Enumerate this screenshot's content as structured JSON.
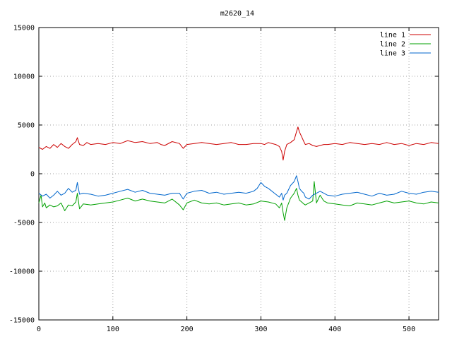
{
  "chart_data": {
    "type": "line",
    "title": "m2620_14",
    "xlabel": "",
    "ylabel": "",
    "xlim": [
      0,
      540
    ],
    "ylim": [
      -15000,
      15000
    ],
    "xticks": [
      0,
      100,
      200,
      300,
      400,
      500
    ],
    "yticks": [
      -15000,
      -10000,
      -5000,
      0,
      5000,
      10000,
      15000
    ],
    "xtick_labels": [
      "0",
      "100",
      "200",
      "300",
      "400",
      "500"
    ],
    "ytick_labels": [
      "-15000",
      "-10000",
      "-5000",
      "0",
      "5000",
      "10000",
      "15000"
    ],
    "grid": true,
    "legend_position": "top-right",
    "series": [
      {
        "name": "line 1",
        "color": "#cc0000",
        "x": [
          0,
          5,
          10,
          15,
          20,
          25,
          30,
          35,
          40,
          45,
          50,
          52,
          55,
          60,
          65,
          70,
          80,
          90,
          100,
          110,
          120,
          130,
          140,
          150,
          160,
          165,
          170,
          180,
          190,
          195,
          200,
          210,
          220,
          230,
          240,
          250,
          260,
          270,
          280,
          290,
          300,
          305,
          310,
          320,
          325,
          328,
          330,
          332,
          335,
          340,
          345,
          348,
          350,
          352,
          355,
          358,
          360,
          365,
          370,
          375,
          380,
          385,
          390,
          400,
          410,
          420,
          430,
          440,
          450,
          460,
          470,
          480,
          490,
          500,
          510,
          520,
          530,
          540
        ],
        "y": [
          2700,
          2500,
          2800,
          2600,
          3000,
          2700,
          3100,
          2800,
          2600,
          3000,
          3300,
          3700,
          3000,
          2900,
          3200,
          3000,
          3100,
          3000,
          3200,
          3100,
          3400,
          3200,
          3300,
          3100,
          3200,
          3000,
          2900,
          3300,
          3100,
          2600,
          3000,
          3100,
          3200,
          3100,
          3000,
          3100,
          3200,
          3000,
          3000,
          3100,
          3100,
          3000,
          3200,
          3000,
          2800,
          2300,
          1400,
          2300,
          3000,
          3200,
          3500,
          4300,
          4800,
          4300,
          3800,
          3300,
          3000,
          3100,
          2900,
          2800,
          2900,
          3000,
          3000,
          3100,
          3000,
          3200,
          3100,
          3000,
          3100,
          3000,
          3200,
          3000,
          3100,
          2900,
          3100,
          3000,
          3200,
          3100
        ]
      },
      {
        "name": "line 2",
        "color": "#00a000",
        "x": [
          0,
          3,
          5,
          8,
          10,
          15,
          20,
          25,
          30,
          35,
          40,
          45,
          50,
          52,
          55,
          60,
          70,
          80,
          90,
          100,
          110,
          120,
          130,
          140,
          150,
          160,
          170,
          180,
          190,
          195,
          200,
          210,
          220,
          230,
          240,
          250,
          260,
          270,
          280,
          290,
          300,
          310,
          320,
          325,
          328,
          330,
          332,
          335,
          340,
          345,
          348,
          350,
          352,
          355,
          358,
          360,
          365,
          370,
          372,
          375,
          378,
          380,
          385,
          390,
          400,
          410,
          420,
          430,
          440,
          450,
          460,
          470,
          480,
          490,
          500,
          510,
          520,
          530,
          540
        ],
        "y": [
          -3000,
          -2200,
          -3400,
          -3000,
          -3500,
          -3200,
          -3400,
          -3300,
          -3000,
          -3800,
          -3200,
          -3300,
          -2900,
          -2000,
          -3600,
          -3100,
          -3200,
          -3100,
          -3000,
          -2900,
          -2700,
          -2500,
          -2800,
          -2600,
          -2800,
          -2900,
          -3000,
          -2600,
          -3200,
          -3700,
          -3000,
          -2700,
          -3000,
          -3100,
          -3000,
          -3200,
          -3100,
          -3000,
          -3200,
          -3100,
          -2800,
          -2900,
          -3100,
          -3500,
          -3000,
          -4000,
          -4800,
          -3500,
          -2500,
          -2000,
          -1500,
          -2200,
          -2700,
          -2900,
          -3100,
          -3200,
          -3000,
          -2800,
          -800,
          -3000,
          -2500,
          -2200,
          -2800,
          -3000,
          -3100,
          -3200,
          -3300,
          -3000,
          -3100,
          -3200,
          -3000,
          -2800,
          -3000,
          -2900,
          -2800,
          -3000,
          -3100,
          -2900,
          -3000
        ]
      },
      {
        "name": "line 3",
        "color": "#0066cc",
        "x": [
          0,
          5,
          10,
          15,
          20,
          25,
          30,
          35,
          40,
          45,
          50,
          52,
          55,
          60,
          70,
          80,
          90,
          100,
          110,
          120,
          130,
          140,
          150,
          160,
          170,
          180,
          190,
          195,
          200,
          210,
          220,
          230,
          240,
          250,
          260,
          270,
          280,
          290,
          295,
          300,
          305,
          310,
          320,
          325,
          328,
          330,
          332,
          335,
          340,
          345,
          348,
          350,
          352,
          355,
          358,
          360,
          365,
          370,
          375,
          380,
          385,
          390,
          400,
          410,
          420,
          430,
          440,
          450,
          460,
          470,
          480,
          490,
          500,
          510,
          520,
          530,
          540
        ],
        "y": [
          -2000,
          -2300,
          -2100,
          -2500,
          -2200,
          -1800,
          -2200,
          -2000,
          -1500,
          -1900,
          -1700,
          -900,
          -2100,
          -2000,
          -2100,
          -2300,
          -2200,
          -2000,
          -1800,
          -1600,
          -1900,
          -1700,
          -2000,
          -2100,
          -2200,
          -2000,
          -2000,
          -2600,
          -2000,
          -1800,
          -1700,
          -2000,
          -1900,
          -2100,
          -2000,
          -1900,
          -2000,
          -1800,
          -1500,
          -900,
          -1300,
          -1500,
          -2100,
          -2400,
          -2000,
          -2700,
          -2200,
          -2000,
          -1200,
          -800,
          -200,
          -800,
          -1500,
          -1800,
          -2000,
          -2400,
          -2600,
          -2200,
          -2000,
          -1800,
          -2000,
          -2200,
          -2300,
          -2100,
          -2000,
          -1900,
          -2100,
          -2300,
          -2000,
          -2200,
          -2100,
          -1800,
          -2000,
          -2100,
          -1900,
          -1800,
          -1900
        ]
      }
    ]
  }
}
